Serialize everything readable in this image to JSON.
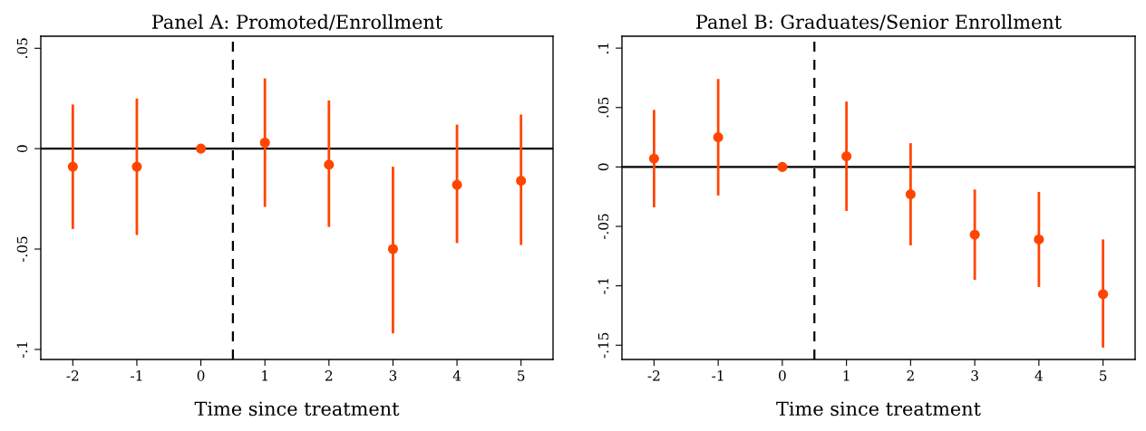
{
  "chart_data": [
    {
      "type": "scatter",
      "title": "Panel A: Promoted/Enrollment",
      "xlabel": "Time since treatment",
      "x": [
        -2,
        -1,
        0,
        1,
        2,
        3,
        4,
        5
      ],
      "series": [
        {
          "color": "#ff4500",
          "values": [
            -0.009,
            -0.009,
            0,
            0.003,
            -0.008,
            -0.05,
            -0.018,
            -0.016
          ],
          "errors": [
            [
              -0.04,
              0.022
            ],
            [
              -0.043,
              0.025
            ],
            null,
            [
              -0.029,
              0.035
            ],
            [
              -0.039,
              0.024
            ],
            [
              -0.092,
              -0.009
            ],
            [
              -0.047,
              0.012
            ],
            [
              -0.048,
              0.017
            ]
          ]
        }
      ],
      "xlim": [
        -2.5,
        5.5
      ],
      "ylim": [
        -0.105,
        0.056
      ],
      "xticks": [
        -2,
        -1,
        0,
        1,
        2,
        3,
        4,
        5
      ],
      "yticks": [
        {
          "value": -0.1,
          "label": "-.1"
        },
        {
          "value": -0.05,
          "label": "-.05"
        },
        {
          "value": 0,
          "label": "0"
        },
        {
          "value": 0.05,
          "label": ".05"
        }
      ],
      "ref_lines": [
        {
          "axis": "y",
          "value": 0,
          "color": "#000000",
          "line_style": "solid"
        },
        {
          "axis": "x",
          "value": 0.5,
          "color": "#000000",
          "line_style": "dashed"
        }
      ],
      "marker": "circle",
      "grid": false
    },
    {
      "type": "scatter",
      "title": "Panel B: Graduates/Senior Enrollment",
      "xlabel": "Time since treatment",
      "x": [
        -2,
        -1,
        0,
        1,
        2,
        3,
        4,
        5
      ],
      "series": [
        {
          "color": "#ff4500",
          "values": [
            0.007,
            0.025,
            0,
            0.009,
            -0.023,
            -0.057,
            -0.061,
            -0.107
          ],
          "errors": [
            [
              -0.034,
              0.048
            ],
            [
              -0.024,
              0.074
            ],
            null,
            [
              -0.037,
              0.055
            ],
            [
              -0.066,
              0.02
            ],
            [
              -0.095,
              -0.019
            ],
            [
              -0.101,
              -0.021
            ],
            [
              -0.152,
              -0.061
            ]
          ]
        }
      ],
      "xlim": [
        -2.5,
        5.5
      ],
      "ylim": [
        -0.162,
        0.11
      ],
      "xticks": [
        -2,
        -1,
        0,
        1,
        2,
        3,
        4,
        5
      ],
      "yticks": [
        {
          "value": -0.15,
          "label": "-.15"
        },
        {
          "value": -0.1,
          "label": "-.1"
        },
        {
          "value": -0.05,
          "label": "-.05"
        },
        {
          "value": 0,
          "label": "0"
        },
        {
          "value": 0.05,
          "label": ".05"
        },
        {
          "value": 0.1,
          "label": ".1"
        }
      ],
      "ref_lines": [
        {
          "axis": "y",
          "value": 0,
          "color": "#000000",
          "line_style": "solid"
        },
        {
          "axis": "x",
          "value": 0.5,
          "color": "#000000",
          "line_style": "dashed"
        }
      ],
      "marker": "circle",
      "grid": false
    }
  ]
}
